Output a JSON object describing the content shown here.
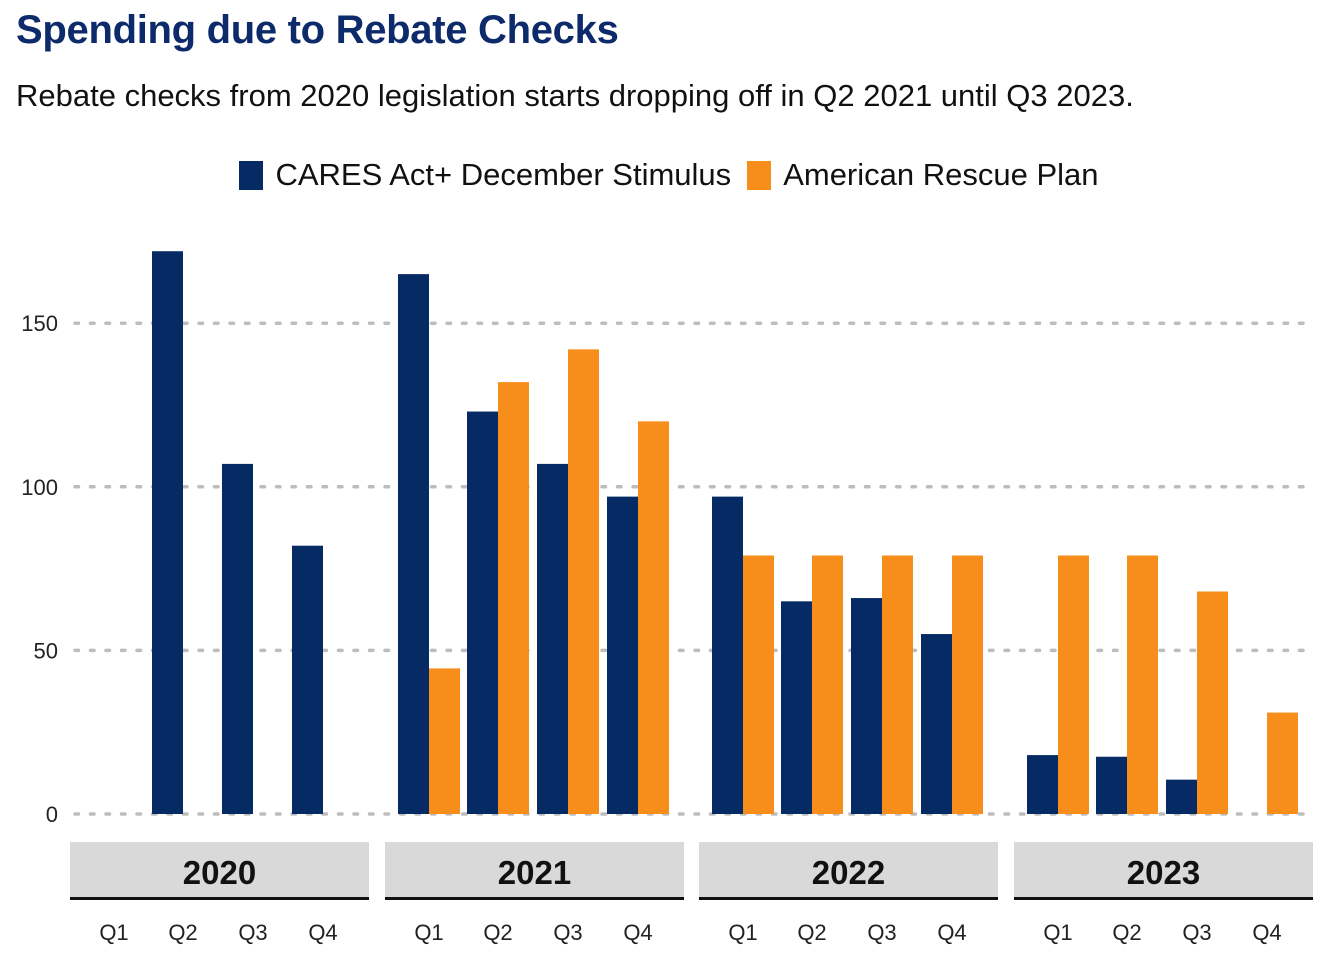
{
  "title": "Spending due to Rebate Checks",
  "subtitle": "Rebate checks from 2020 legislation starts dropping off in Q2 2021 until Q3 2023.",
  "colors": {
    "cares": "#062a64",
    "arp": "#f78d1b"
  },
  "chart_data": {
    "type": "bar",
    "facets": [
      "2020",
      "2021",
      "2022",
      "2023"
    ],
    "categories": [
      "Q1",
      "Q2",
      "Q3",
      "Q4"
    ],
    "series": [
      {
        "name": "CARES Act+ December Stimulus",
        "values": [
          [
            null,
            172,
            107,
            82
          ],
          [
            165,
            123,
            107,
            97
          ],
          [
            97,
            65,
            66,
            55
          ],
          [
            18,
            17.5,
            10.5,
            null
          ]
        ]
      },
      {
        "name": "American Rescue Plan",
        "values": [
          [
            null,
            null,
            null,
            null
          ],
          [
            44.5,
            132,
            142,
            120
          ],
          [
            79,
            79,
            79,
            79
          ],
          [
            79,
            79,
            68,
            31
          ]
        ]
      }
    ],
    "yticks": [
      0,
      50,
      100,
      150
    ],
    "ylim": [
      0,
      180
    ],
    "grid": "horizontal dotted",
    "legend_position": "top"
  }
}
